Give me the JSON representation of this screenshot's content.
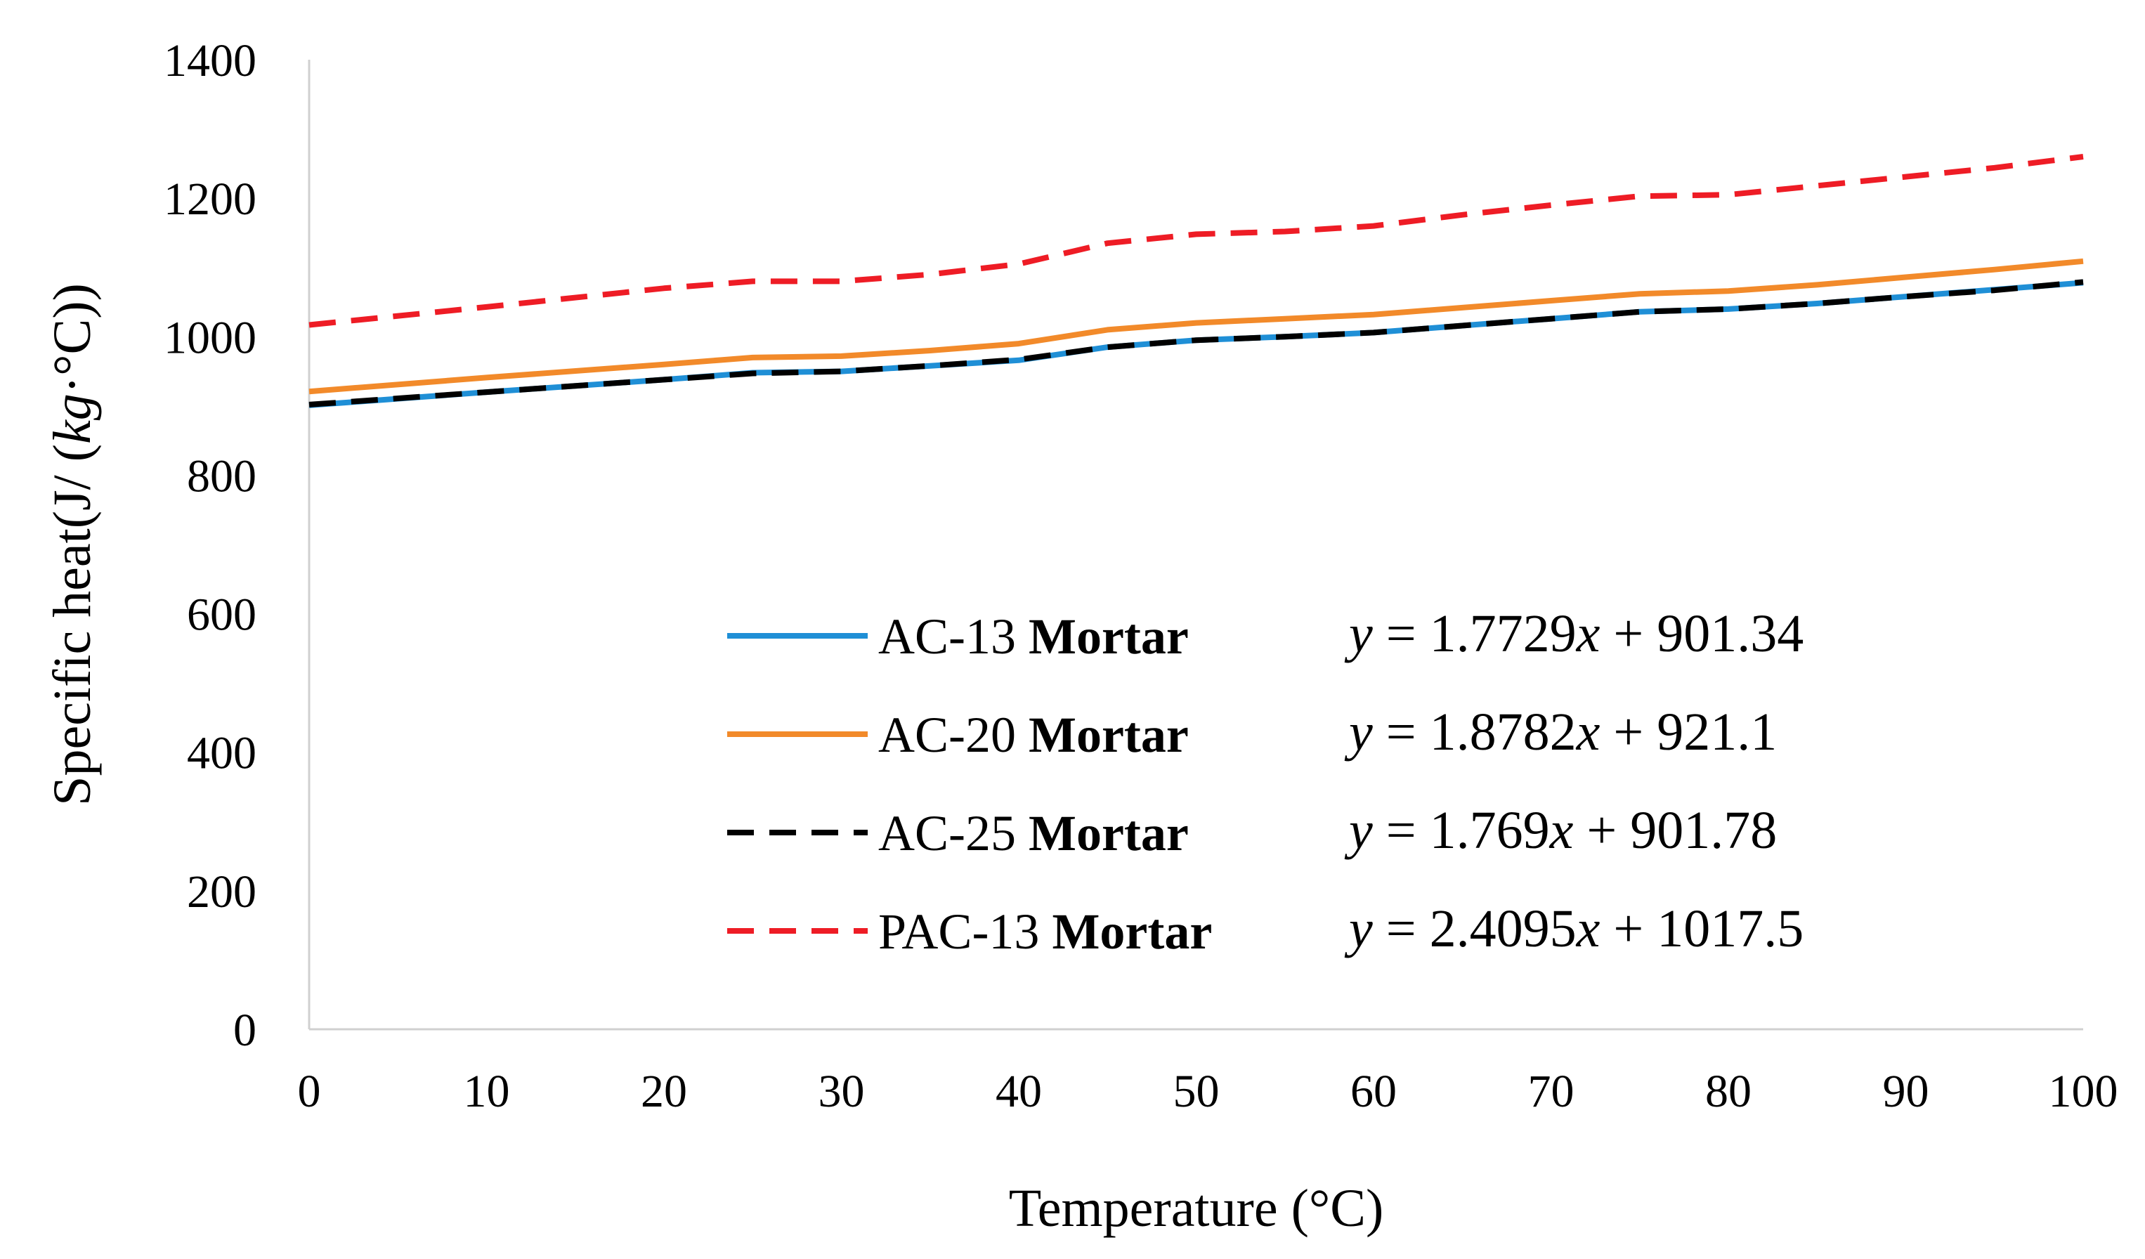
{
  "chart_data": {
    "type": "line",
    "title": "",
    "xlabel": "Temperature (°C)",
    "ylabel_prefix": "Specific heat(J/ (",
    "ylabel_var": "kg",
    "ylabel_suffix": "·°C))",
    "xlim": [
      0,
      100
    ],
    "ylim": [
      0,
      1400
    ],
    "x_ticks": [
      0,
      10,
      20,
      30,
      40,
      50,
      60,
      70,
      80,
      90,
      100
    ],
    "y_ticks": [
      0,
      200,
      400,
      600,
      800,
      1000,
      1200,
      1400
    ],
    "grid": false,
    "legend_position": "center-right",
    "series": [
      {
        "name": "AC-13",
        "name_bold": "Mortar",
        "color": "#1f8fd6",
        "dash": "solid",
        "equation": "y = 1.7729x + 901.34",
        "eq_slope": "1.7729",
        "eq_intercept": "901.34",
        "x": [
          0,
          10,
          20,
          25,
          30,
          35,
          40,
          45,
          50,
          55,
          60,
          65,
          70,
          75,
          80,
          85,
          90,
          95,
          100
        ],
        "values": [
          901,
          920,
          938,
          948,
          950,
          958,
          966,
          985,
          995,
          1000,
          1006,
          1016,
          1026,
          1036,
          1040,
          1048,
          1058,
          1068,
          1078
        ]
      },
      {
        "name": "AC-20",
        "name_bold": "Mortar",
        "color": "#f28a2a",
        "dash": "solid",
        "equation": "y = 1.8782x + 921.1",
        "eq_slope": "1.8782",
        "eq_intercept": "921.1",
        "x": [
          0,
          10,
          20,
          25,
          30,
          35,
          40,
          45,
          50,
          55,
          60,
          65,
          70,
          75,
          80,
          85,
          90,
          95,
          100
        ],
        "values": [
          921,
          941,
          960,
          970,
          972,
          980,
          990,
          1010,
          1020,
          1026,
          1032,
          1042,
          1052,
          1062,
          1066,
          1075,
          1086,
          1097,
          1109
        ]
      },
      {
        "name": "AC-25",
        "name_bold": "Mortar",
        "color": "#000000",
        "dash": "dashed",
        "equation": "y = 1.769x + 901.78",
        "eq_slope": "1.769",
        "eq_intercept": "901.78",
        "x": [
          0,
          10,
          20,
          25,
          30,
          35,
          40,
          45,
          50,
          55,
          60,
          65,
          70,
          75,
          80,
          85,
          90,
          95,
          100
        ],
        "values": [
          902,
          920,
          938,
          947,
          950,
          958,
          967,
          985,
          995,
          1000,
          1006,
          1016,
          1026,
          1036,
          1040,
          1048,
          1058,
          1067,
          1079
        ]
      },
      {
        "name": "PAC-13",
        "name_bold": "Mortar",
        "color": "#ee1c25",
        "dash": "dashed",
        "equation": "y = 2.4095x + 1017.5",
        "eq_slope": "2.4095",
        "eq_intercept": "1017.5",
        "x": [
          0,
          10,
          20,
          25,
          30,
          35,
          40,
          45,
          50,
          55,
          60,
          65,
          70,
          75,
          80,
          85,
          90,
          95,
          100
        ],
        "values": [
          1017,
          1043,
          1070,
          1080,
          1080,
          1090,
          1105,
          1135,
          1148,
          1152,
          1160,
          1176,
          1190,
          1203,
          1205,
          1218,
          1231,
          1244,
          1260
        ]
      }
    ]
  }
}
